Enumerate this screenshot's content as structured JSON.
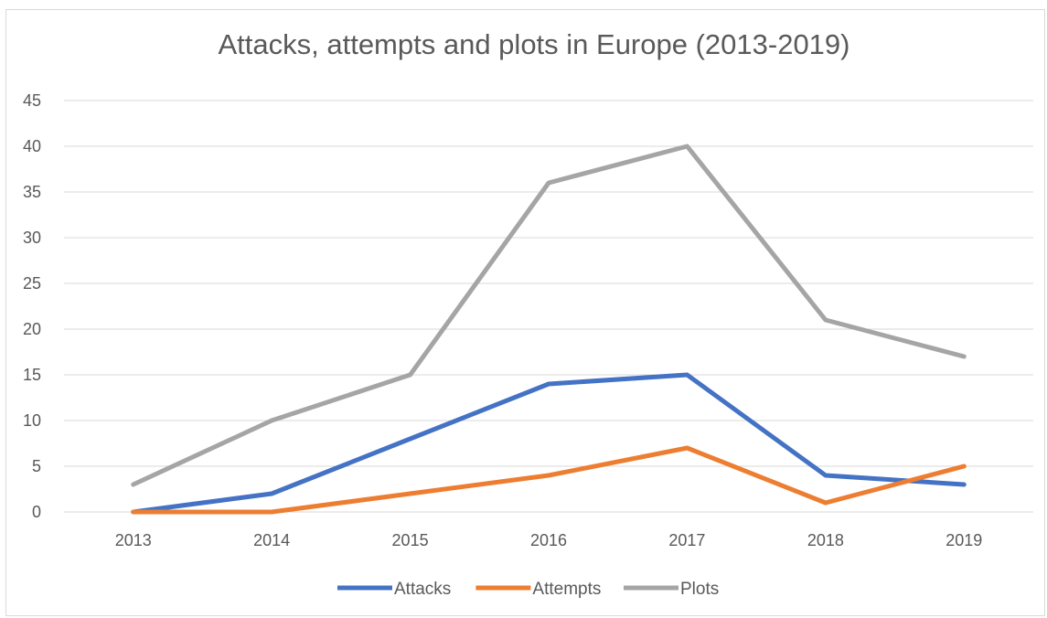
{
  "chart_data": {
    "type": "line",
    "title": "Attacks, attempts and plots in Europe (2013-2019)",
    "xlabel": "",
    "ylabel": "",
    "categories": [
      "2013",
      "2014",
      "2015",
      "2016",
      "2017",
      "2018",
      "2019"
    ],
    "ylim": [
      0,
      45
    ],
    "yticks": [
      0,
      5,
      10,
      15,
      20,
      25,
      30,
      35,
      40,
      45
    ],
    "grid": true,
    "legend_position": "bottom",
    "series": [
      {
        "name": "Attacks",
        "color": "#4472c4",
        "values": [
          0,
          2,
          8,
          14,
          15,
          4,
          3
        ]
      },
      {
        "name": "Attempts",
        "color": "#ed7d31",
        "values": [
          0,
          0,
          2,
          4,
          7,
          1,
          5
        ]
      },
      {
        "name": "Plots",
        "color": "#a5a5a5",
        "values": [
          3,
          10,
          15,
          36,
          40,
          21,
          17
        ]
      }
    ]
  }
}
